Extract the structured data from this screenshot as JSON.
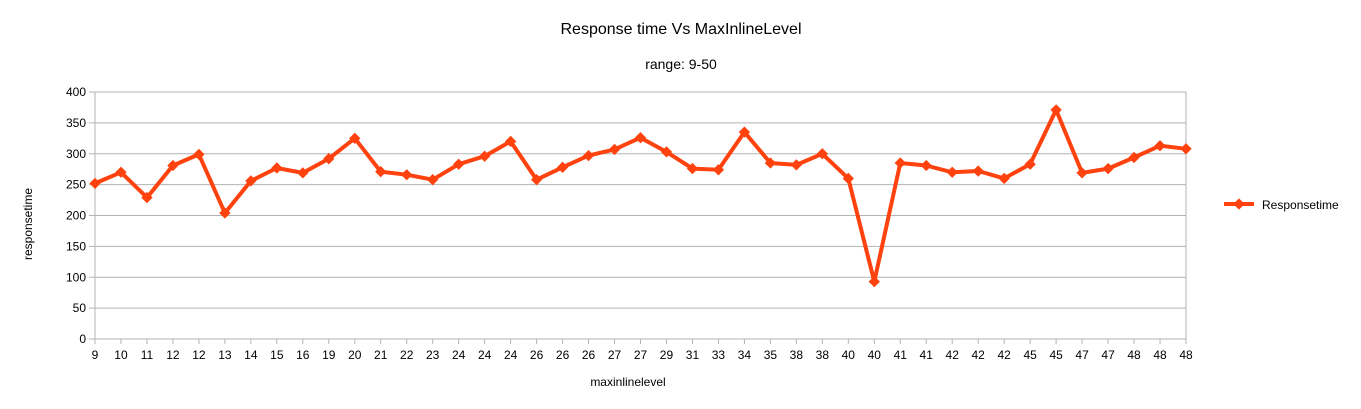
{
  "chart_data": {
    "type": "line",
    "title": "Response time Vs MaxInlineLevel",
    "subtitle": "range: 9-50",
    "xlabel": "maxinlinelevel",
    "ylabel": "responsetime",
    "ylim": [
      0,
      400
    ],
    "yticks": [
      0,
      50,
      100,
      150,
      200,
      250,
      300,
      350,
      400
    ],
    "grid": true,
    "legend_position": "right",
    "categories": [
      "9",
      "10",
      "11",
      "12",
      "12",
      "13",
      "14",
      "15",
      "16",
      "19",
      "20",
      "21",
      "22",
      "23",
      "24",
      "24",
      "24",
      "26",
      "26",
      "26",
      "27",
      "27",
      "29",
      "31",
      "33",
      "34",
      "35",
      "38",
      "38",
      "40",
      "40",
      "41",
      "41",
      "42",
      "42",
      "42",
      "45",
      "45",
      "47",
      "47",
      "48",
      "48",
      "48"
    ],
    "series": [
      {
        "name": "Responsetime",
        "color": "#ff420e",
        "values": [
          252,
          270,
          229,
          281,
          299,
          204,
          256,
          277,
          269,
          292,
          325,
          271,
          266,
          258,
          283,
          296,
          320,
          258,
          278,
          297,
          307,
          326,
          303,
          276,
          274,
          335,
          285,
          282,
          300,
          260,
          93,
          285,
          281,
          270,
          272,
          260,
          283,
          371,
          269,
          276,
          294,
          313,
          308
        ]
      }
    ]
  }
}
